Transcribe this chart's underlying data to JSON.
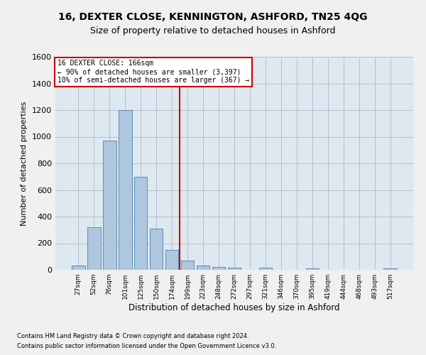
{
  "title": "16, DEXTER CLOSE, KENNINGTON, ASHFORD, TN25 4QG",
  "subtitle": "Size of property relative to detached houses in Ashford",
  "xlabel": "Distribution of detached houses by size in Ashford",
  "ylabel": "Number of detached properties",
  "footer_line1": "Contains HM Land Registry data © Crown copyright and database right 2024.",
  "footer_line2": "Contains public sector information licensed under the Open Government Licence v3.0.",
  "bar_labels": [
    "27sqm",
    "52sqm",
    "76sqm",
    "101sqm",
    "125sqm",
    "150sqm",
    "174sqm",
    "199sqm",
    "223sqm",
    "248sqm",
    "272sqm",
    "297sqm",
    "321sqm",
    "346sqm",
    "370sqm",
    "395sqm",
    "419sqm",
    "444sqm",
    "468sqm",
    "493sqm",
    "517sqm"
  ],
  "bar_values": [
    30,
    320,
    970,
    1200,
    700,
    310,
    150,
    70,
    30,
    20,
    15,
    0,
    15,
    0,
    0,
    12,
    0,
    0,
    0,
    0,
    12
  ],
  "bar_color": "#aec6de",
  "bar_edge_color": "#5b8db8",
  "vline_color": "#cc0000",
  "annotation_text": "16 DEXTER CLOSE: 166sqm\n← 90% of detached houses are smaller (3,397)\n10% of semi-detached houses are larger (367) →",
  "annotation_box_color": "#ffffff",
  "annotation_box_edge": "#cc0000",
  "ylim": [
    0,
    1600
  ],
  "yticks": [
    0,
    200,
    400,
    600,
    800,
    1000,
    1200,
    1400,
    1600
  ],
  "grid_color": "#bbbbcc",
  "bg_color": "#dde8f0",
  "fig_color": "#f0f0f0",
  "title_fontsize": 10,
  "subtitle_fontsize": 9,
  "vline_index": 6.5
}
